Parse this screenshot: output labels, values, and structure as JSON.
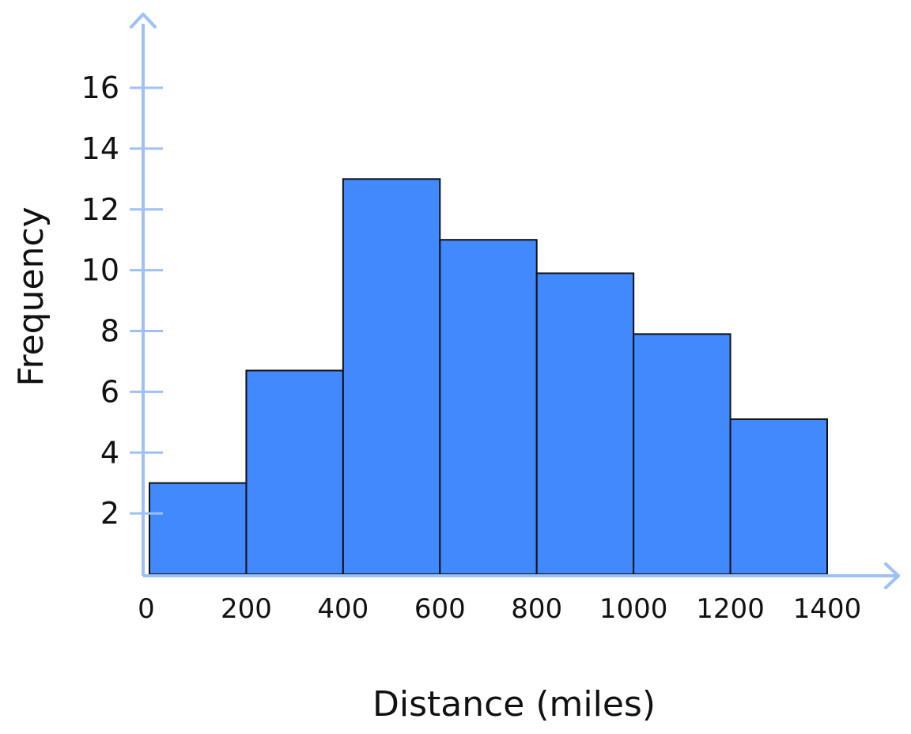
{
  "chart_data": {
    "type": "bar",
    "title": "",
    "xlabel": "Distance (miles)",
    "ylabel": "Frequency",
    "bins": [
      {
        "start": 0,
        "end": 200,
        "value": 3
      },
      {
        "start": 200,
        "end": 400,
        "value": 6.7
      },
      {
        "start": 400,
        "end": 600,
        "value": 13
      },
      {
        "start": 600,
        "end": 800,
        "value": 11
      },
      {
        "start": 800,
        "end": 1000,
        "value": 9.9
      },
      {
        "start": 1000,
        "end": 1200,
        "value": 7.9
      },
      {
        "start": 1200,
        "end": 1400,
        "value": 5.1
      }
    ],
    "x_ticks": [
      "0",
      "200",
      "400",
      "600",
      "800",
      "1000",
      "1200",
      "1400"
    ],
    "y_ticks": [
      "2",
      "4",
      "6",
      "8",
      "10",
      "12",
      "14",
      "16"
    ],
    "xlim": [
      0,
      1400
    ],
    "ylim": [
      0,
      16
    ],
    "grid": false,
    "colors": {
      "bar_fill": "#4189fc",
      "bar_edge": "#111111",
      "axis": "#9ec0f5",
      "text": "#111111"
    }
  }
}
